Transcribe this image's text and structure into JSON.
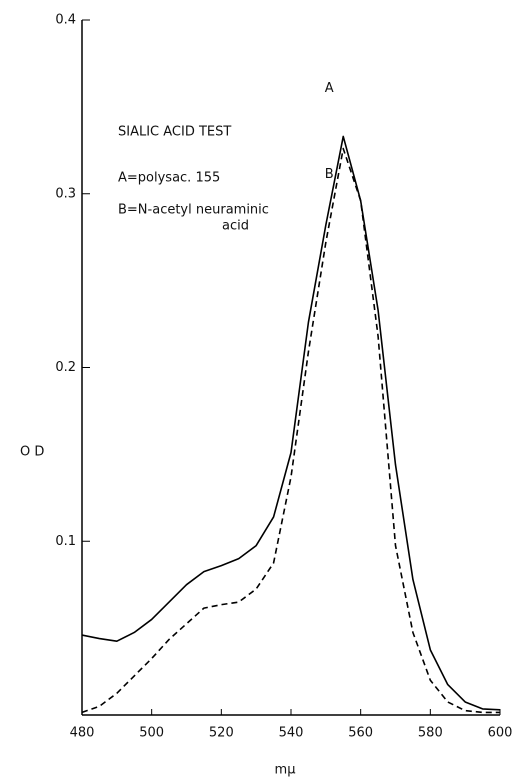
{
  "chart_data": {
    "type": "line",
    "x_label": "mμ",
    "y_label": "O D",
    "annotations": [
      "SIALIC ACID TEST",
      "A=polysac.  155",
      "B=N-acetyl neuraminic",
      "acid"
    ],
    "x": [
      480,
      485,
      490,
      495,
      500,
      505,
      510,
      515,
      520,
      525,
      530,
      535,
      540,
      545,
      550,
      555,
      560,
      565,
      570,
      575,
      580,
      585,
      590,
      595,
      600
    ],
    "series": [
      {
        "name": "A",
        "color": "#000000",
        "linestyle": "solid",
        "values": [
          0.046,
          0.044,
          0.0425,
          0.0475,
          0.055,
          0.065,
          0.075,
          0.0825,
          0.086,
          0.09,
          0.0975,
          0.114,
          0.151,
          0.226,
          0.282,
          0.333,
          0.296,
          0.233,
          0.144,
          0.078,
          0.0375,
          0.0175,
          0.0075,
          0.0035,
          0.003
        ]
      },
      {
        "name": "B",
        "color": "#000000",
        "linestyle": "dashed",
        "values": [
          0.0015,
          0.005,
          0.0125,
          0.0225,
          0.0325,
          0.0435,
          0.0525,
          0.0615,
          0.0635,
          0.065,
          0.0725,
          0.0875,
          0.137,
          0.209,
          0.272,
          0.326,
          0.296,
          0.218,
          0.0975,
          0.0475,
          0.02,
          0.0075,
          0.0025,
          0.0015,
          0.0015
        ]
      }
    ],
    "xlim": [
      480,
      600
    ],
    "xticks": [
      480,
      500,
      520,
      540,
      560,
      580,
      600
    ],
    "ylim": [
      0,
      0.4
    ],
    "yticks": [
      0.1,
      0.2,
      0.3,
      0.4
    ],
    "grid": false
  }
}
